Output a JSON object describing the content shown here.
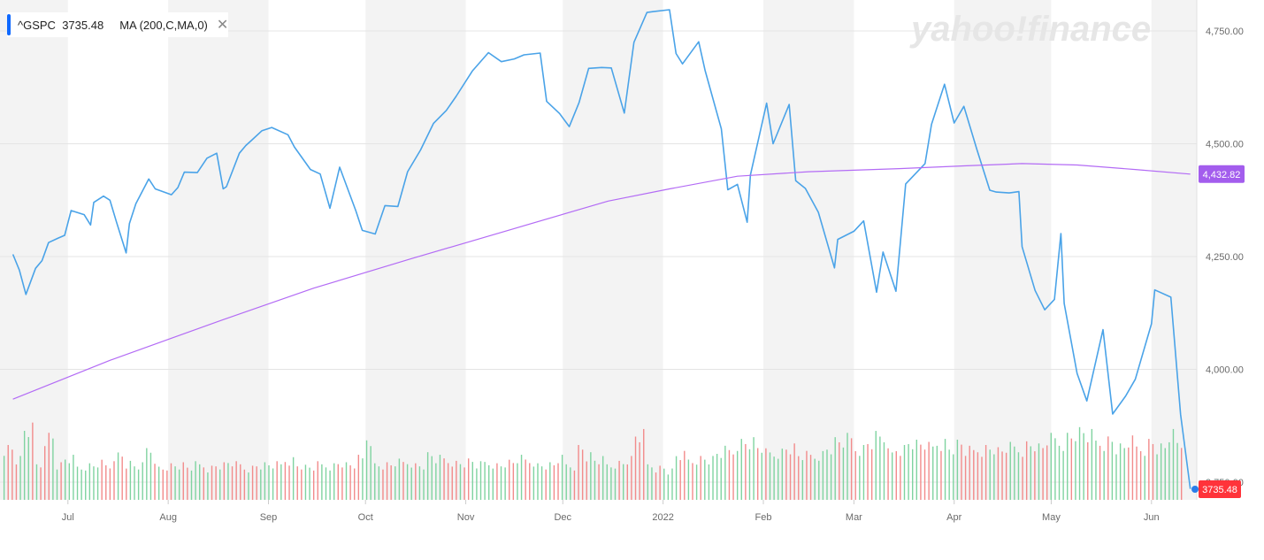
{
  "legend": {
    "symbol": "^GSPC",
    "price": "3735.48",
    "indicator": "MA (200,C,MA,0)",
    "close_icon": "close-icon"
  },
  "watermark": "yahoo!finance",
  "colors": {
    "price_line": "#4aa3e8",
    "ma_line": "#b36bf5",
    "vol_up": "#7fd3a0",
    "vol_down": "#f28b8b",
    "band": "#f3f3f3",
    "badge_ma": "#a35ded",
    "badge_price": "#ff333a",
    "accent": "#0f69ff"
  },
  "chart_data": {
    "type": "line",
    "x_ticks": [
      "Jul",
      "Aug",
      "Sep",
      "Oct",
      "Nov",
      "Dec",
      "2022",
      "Feb",
      "Mar",
      "Apr",
      "May",
      "Jun"
    ],
    "y_ticks": [
      "4,750.00",
      "4,500.00",
      "4,250.00",
      "4,000.00",
      "3,750.00"
    ],
    "ylim": [
      3750,
      4800
    ],
    "series": [
      {
        "name": "^GSPC",
        "x": [
          "2021-06-14",
          "2021-06-16",
          "2021-06-18",
          "2021-06-21",
          "2021-06-23",
          "2021-06-25",
          "2021-06-28",
          "2021-06-30",
          "2021-07-02",
          "2021-07-06",
          "2021-07-08",
          "2021-07-09",
          "2021-07-12",
          "2021-07-14",
          "2021-07-16",
          "2021-07-19",
          "2021-07-20",
          "2021-07-22",
          "2021-07-26",
          "2021-07-28",
          "2021-07-30",
          "2021-08-02",
          "2021-08-04",
          "2021-08-06",
          "2021-08-10",
          "2021-08-13",
          "2021-08-16",
          "2021-08-18",
          "2021-08-19",
          "2021-08-23",
          "2021-08-25",
          "2021-08-27",
          "2021-08-30",
          "2021-09-02",
          "2021-09-07",
          "2021-09-09",
          "2021-09-14",
          "2021-09-17",
          "2021-09-20",
          "2021-09-23",
          "2021-09-28",
          "2021-09-30",
          "2021-10-04",
          "2021-10-07",
          "2021-10-11",
          "2021-10-14",
          "2021-10-18",
          "2021-10-22",
          "2021-10-26",
          "2021-10-29",
          "2021-11-03",
          "2021-11-08",
          "2021-11-12",
          "2021-11-16",
          "2021-11-19",
          "2021-11-24",
          "2021-11-26",
          "2021-11-30",
          "2021-12-03",
          "2021-12-06",
          "2021-12-09",
          "2021-12-13",
          "2021-12-16",
          "2021-12-20",
          "2021-12-23",
          "2021-12-27",
          "2021-12-29",
          "2022-01-03",
          "2022-01-05",
          "2022-01-07",
          "2022-01-12",
          "2022-01-14",
          "2022-01-19",
          "2022-01-21",
          "2022-01-24",
          "2022-01-27",
          "2022-01-28",
          "2022-02-02",
          "2022-02-04",
          "2022-02-09",
          "2022-02-11",
          "2022-02-14",
          "2022-02-18",
          "2022-02-23",
          "2022-02-24",
          "2022-03-01",
          "2022-03-04",
          "2022-03-08",
          "2022-03-10",
          "2022-03-14",
          "2022-03-17",
          "2022-03-23",
          "2022-03-25",
          "2022-03-29",
          "2022-04-01",
          "2022-04-04",
          "2022-04-08",
          "2022-04-12",
          "2022-04-14",
          "2022-04-18",
          "2022-04-21",
          "2022-04-22",
          "2022-04-26",
          "2022-04-29",
          "2022-05-02",
          "2022-05-04",
          "2022-05-05",
          "2022-05-09",
          "2022-05-12",
          "2022-05-17",
          "2022-05-20",
          "2022-05-24",
          "2022-05-27",
          "2022-06-01",
          "2022-06-02",
          "2022-06-07",
          "2022-06-10",
          "2022-06-13"
        ],
        "values": [
          4255,
          4220,
          4166,
          4224,
          4241,
          4281,
          4291,
          4297,
          4352,
          4343,
          4320,
          4370,
          4384,
          4375,
          4327,
          4258,
          4323,
          4367,
          4422,
          4400,
          4395,
          4387,
          4403,
          4437,
          4436,
          4468,
          4479,
          4400,
          4405,
          4479,
          4496,
          4509,
          4529,
          4536,
          4520,
          4493,
          4443,
          4433,
          4357,
          4448,
          4352,
          4308,
          4300,
          4363,
          4361,
          4438,
          4486,
          4545,
          4574,
          4605,
          4661,
          4702,
          4682,
          4688,
          4697,
          4701,
          4594,
          4567,
          4538,
          4591,
          4667,
          4669,
          4668,
          4568,
          4725,
          4791,
          4793,
          4797,
          4700,
          4677,
          4726,
          4662,
          4533,
          4398,
          4410,
          4326,
          4431,
          4590,
          4500,
          4587,
          4418,
          4401,
          4348,
          4225,
          4288,
          4306,
          4329,
          4171,
          4260,
          4173,
          4411,
          4456,
          4543,
          4632,
          4546,
          4583,
          4488,
          4397,
          4393,
          4391,
          4394,
          4272,
          4175,
          4132,
          4155,
          4301,
          4146,
          3991,
          3930,
          4088,
          3901,
          3941,
          3978,
          4101,
          4176,
          4160,
          3900,
          3735
        ]
      },
      {
        "name": "MA (200,C,MA,0)",
        "x": [
          "2021-06-14",
          "2021-07-14",
          "2021-08-16",
          "2021-09-15",
          "2021-10-15",
          "2021-11-15",
          "2021-12-15",
          "2022-01-03",
          "2022-01-24",
          "2022-02-15",
          "2022-03-15",
          "2022-04-04",
          "2022-04-22",
          "2022-05-09",
          "2022-05-27",
          "2022-06-13"
        ],
        "values": [
          3934,
          4020,
          4105,
          4180,
          4245,
          4310,
          4373,
          4400,
          4428,
          4438,
          4445,
          4451,
          4456,
          4453,
          4443,
          4432.82
        ]
      }
    ],
    "volume": {
      "note": "relative volume bars (0–1 scale), green = up day, red = down day",
      "values": [
        0.45,
        0.35,
        0.6,
        0.3,
        0.55,
        0.3,
        0.35,
        0.28,
        0.3,
        0.32,
        0.3,
        0.4,
        0.32,
        0.3,
        0.45,
        0.28,
        0.3,
        0.3,
        0.28,
        0.3,
        0.28,
        0.3,
        0.32,
        0.3,
        0.28,
        0.3,
        0.3,
        0.3,
        0.35,
        0.3,
        0.28,
        0.3,
        0.3,
        0.32,
        0.3,
        0.35,
        0.55,
        0.3,
        0.3,
        0.32,
        0.33,
        0.3,
        0.38,
        0.35,
        0.34,
        0.32,
        0.33,
        0.3,
        0.32,
        0.3,
        0.32,
        0.35,
        0.34,
        0.3,
        0.3,
        0.35,
        0.3,
        0.45,
        0.38,
        0.34,
        0.3,
        0.32,
        0.35,
        0.55,
        0.3,
        0.28,
        0.25,
        0.38,
        0.34,
        0.36,
        0.35,
        0.4,
        0.42,
        0.5,
        0.5,
        0.45,
        0.4,
        0.42,
        0.45,
        0.38,
        0.38,
        0.4,
        0.45,
        0.5,
        0.52,
        0.45,
        0.5,
        0.55,
        0.4,
        0.45,
        0.5,
        0.48,
        0.45,
        0.5,
        0.45,
        0.48,
        0.42,
        0.44,
        0.45,
        0.42,
        0.45,
        0.44,
        0.48,
        0.45,
        0.52,
        0.5,
        0.55,
        0.58,
        0.55,
        0.5,
        0.52,
        0.45,
        0.5,
        0.45,
        0.5,
        0.45,
        0.55,
        0.48
      ],
      "up": [
        true,
        false,
        false,
        true,
        false,
        true,
        false,
        true,
        true,
        false,
        true,
        true,
        false,
        true,
        false,
        false,
        true,
        true,
        true,
        false,
        false,
        true,
        true,
        true,
        false,
        true,
        true,
        false,
        true,
        true,
        true,
        true,
        true,
        false,
        false,
        false,
        false,
        false,
        false,
        true,
        false,
        false,
        false,
        true,
        true,
        true,
        true,
        true,
        true,
        true,
        true,
        true,
        false,
        true,
        false,
        true,
        false,
        false,
        false,
        true,
        true,
        false,
        false,
        false,
        true,
        true,
        true,
        true,
        false,
        false,
        true,
        false,
        false,
        false,
        true,
        false,
        true,
        true,
        false,
        true,
        false,
        false,
        false,
        false,
        true,
        false,
        true,
        false,
        true,
        false,
        true,
        true,
        true,
        true,
        false,
        true,
        false,
        false,
        false,
        true,
        false,
        false,
        false,
        false,
        true,
        true,
        false,
        false,
        false,
        true,
        false,
        true,
        true,
        true,
        true,
        false,
        false,
        false
      ]
    }
  },
  "badges": {
    "ma_value": "4,432.82",
    "price_value": "3735.48"
  }
}
